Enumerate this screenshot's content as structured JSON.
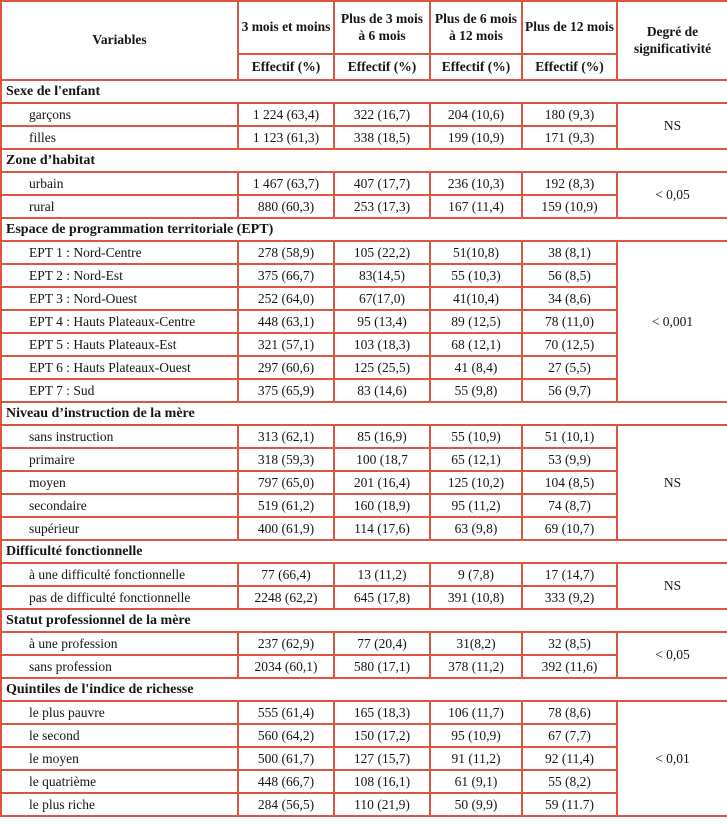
{
  "table": {
    "border_color": "#db5742",
    "header": {
      "variables_label": "Variables",
      "columns": [
        "3 mois et moins",
        "Plus de 3 mois à 6 mois",
        "Plus de 6 mois à 12 mois",
        "Plus de 12 mois"
      ],
      "effectif_label": "Effectif (%)",
      "significance_label": "Degré de significativité"
    },
    "sections": [
      {
        "title": "Sexe de l'enfant",
        "significance": "NS",
        "rows": [
          {
            "label": "garçons",
            "values": [
              "1 224 (63,4)",
              "322 (16,7)",
              "204 (10,6)",
              "180 (9,3)"
            ]
          },
          {
            "label": "filles",
            "values": [
              "1 123 (61,3)",
              "338 (18,5)",
              "199 (10,9)",
              "171 (9,3)"
            ]
          }
        ]
      },
      {
        "title": "Zone d’habitat",
        "significance": "< 0,05",
        "rows": [
          {
            "label": "urbain",
            "values": [
              "1 467 (63,7)",
              "407 (17,7)",
              "236 (10,3)",
              "192 (8,3)"
            ]
          },
          {
            "label": "rural",
            "values": [
              "880 (60,3)",
              "253 (17,3)",
              "167 (11,4)",
              "159 (10,9)"
            ]
          }
        ]
      },
      {
        "title": "Espace de programmation territoriale (EPT)",
        "significance": "< 0,001",
        "rows": [
          {
            "label": "EPT 1 : Nord-Centre",
            "values": [
              "278 (58,9)",
              "105 (22,2)",
              "51(10,8)",
              "38 (8,1)"
            ]
          },
          {
            "label": "EPT 2 : Nord-Est",
            "values": [
              "375 (66,7)",
              "83(14,5)",
              "55 (10,3)",
              "56 (8,5)"
            ]
          },
          {
            "label": "EPT 3 : Nord-Ouest",
            "values": [
              "252 (64,0)",
              "67(17,0)",
              "41(10,4)",
              "34 (8,6)"
            ]
          },
          {
            "label": "EPT 4 : Hauts Plateaux-Centre",
            "values": [
              "448 (63,1)",
              "95 (13,4)",
              "89 (12,5)",
              "78 (11,0)"
            ]
          },
          {
            "label": "EPT 5 : Hauts Plateaux-Est",
            "values": [
              "321 (57,1)",
              "103 (18,3)",
              "68 (12,1)",
              "70 (12,5)"
            ]
          },
          {
            "label": "EPT 6 : Hauts Plateaux-Ouest",
            "values": [
              "297 (60,6)",
              "125 (25,5)",
              "41 (8,4)",
              "27 (5,5)"
            ]
          },
          {
            "label": "EPT 7 : Sud",
            "values": [
              "375 (65,9)",
              "83 (14,6)",
              "55 (9,8)",
              "56 (9,7)"
            ]
          }
        ]
      },
      {
        "title": "Niveau d’instruction de la mère",
        "significance": "NS",
        "rows": [
          {
            "label": "sans instruction",
            "values": [
              "313 (62,1)",
              "85 (16,9)",
              "55 (10,9)",
              "51 (10,1)"
            ]
          },
          {
            "label": "primaire",
            "values": [
              "318 (59,3)",
              "100 (18,7",
              "65 (12,1)",
              "53 (9,9)"
            ]
          },
          {
            "label": "moyen",
            "values": [
              "797 (65,0)",
              "201 (16,4)",
              "125 (10,2)",
              "104 (8,5)"
            ]
          },
          {
            "label": "secondaire",
            "values": [
              "519 (61,2)",
              "160 (18,9)",
              "95 (11,2)",
              "74 (8,7)"
            ]
          },
          {
            "label": "supérieur",
            "values": [
              "400 (61,9)",
              "114 (17,6)",
              "63 (9,8)",
              "69 (10,7)"
            ]
          }
        ]
      },
      {
        "title": "Difficulté fonctionnelle",
        "significance": "NS",
        "rows": [
          {
            "label": "à une difficulté fonctionnelle",
            "values": [
              "77 (66,4)",
              "13 (11,2)",
              "9 (7,8)",
              "17 (14,7)"
            ]
          },
          {
            "label": "pas de difficulté fonctionnelle",
            "values": [
              "2248 (62,2)",
              "645 (17,8)",
              "391 (10,8)",
              "333 (9,2)"
            ]
          }
        ]
      },
      {
        "title": "Statut professionnel de la mère",
        "significance": "< 0,05",
        "rows": [
          {
            "label": "à une profession",
            "values": [
              "237 (62,9)",
              "77 (20,4)",
              "31(8,2)",
              "32 (8,5)"
            ]
          },
          {
            "label": "sans profession",
            "values": [
              "2034 (60,1)",
              "580 (17,1)",
              "378 (11,2)",
              "392 (11,6)"
            ]
          }
        ]
      },
      {
        "title": "Quintiles de l'indice de richesse",
        "significance": "< 0,01",
        "rows": [
          {
            "label": "le plus pauvre",
            "values": [
              "555 (61,4)",
              "165 (18,3)",
              "106 (11,7)",
              "78 (8,6)"
            ]
          },
          {
            "label": "le second",
            "values": [
              "560 (64,2)",
              "150 (17,2)",
              "95 (10,9)",
              "67 (7,7)"
            ]
          },
          {
            "label": "le moyen",
            "values": [
              "500 (61,7)",
              "127 (15,7)",
              "91 (11,2)",
              "92 (11,4)"
            ]
          },
          {
            "label": "le quatrième",
            "values": [
              "448 (66,7)",
              "108 (16,1)",
              "61 (9,1)",
              "55 (8,2)"
            ]
          },
          {
            "label": "le plus riche",
            "values": [
              "284 (56,5)",
              "110 (21,9)",
              "50 (9,9)",
              "59 (11.7)"
            ]
          }
        ]
      }
    ]
  }
}
